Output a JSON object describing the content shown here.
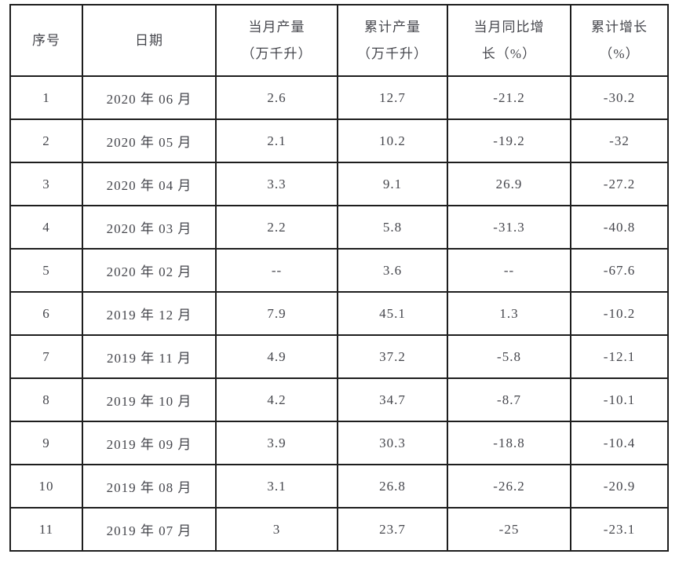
{
  "page": {
    "background": "#ffffff"
  },
  "table": {
    "border_color": "#1e1e1e",
    "text_color": "#45464c",
    "columns": [
      {
        "id": "index",
        "label": [
          "序号"
        ]
      },
      {
        "id": "date",
        "label": [
          "日期"
        ]
      },
      {
        "id": "monthly-output",
        "label": [
          "当月产量",
          "（万千升）"
        ]
      },
      {
        "id": "cumulative-output",
        "label": [
          "累计产量",
          "（万千升）"
        ]
      },
      {
        "id": "monthly-yoy-growth",
        "label": [
          "当月同比增",
          "长（%）"
        ]
      },
      {
        "id": "cumulative-growth",
        "label": [
          "累计增长",
          "（%）"
        ]
      }
    ],
    "rows": [
      [
        "1",
        "2020 年 06 月",
        "2.6",
        "12.7",
        "-21.2",
        "-30.2"
      ],
      [
        "2",
        "2020 年 05 月",
        "2.1",
        "10.2",
        "-19.2",
        "-32"
      ],
      [
        "3",
        "2020 年 04 月",
        "3.3",
        "9.1",
        "26.9",
        "-27.2"
      ],
      [
        "4",
        "2020 年 03 月",
        "2.2",
        "5.8",
        "-31.3",
        "-40.8"
      ],
      [
        "5",
        "2020 年 02 月",
        "--",
        "3.6",
        "--",
        "-67.6"
      ],
      [
        "6",
        "2019 年 12 月",
        "7.9",
        "45.1",
        "1.3",
        "-10.2"
      ],
      [
        "7",
        "2019 年 11 月",
        "4.9",
        "37.2",
        "-5.8",
        "-12.1"
      ],
      [
        "8",
        "2019 年 10 月",
        "4.2",
        "34.7",
        "-8.7",
        "-10.1"
      ],
      [
        "9",
        "2019 年 09 月",
        "3.9",
        "30.3",
        "-18.8",
        "-10.4"
      ],
      [
        "10",
        "2019 年 08 月",
        "3.1",
        "26.8",
        "-26.2",
        "-20.9"
      ],
      [
        "11",
        "2019 年 07 月",
        "3",
        "23.7",
        "-25",
        "-23.1"
      ]
    ]
  }
}
